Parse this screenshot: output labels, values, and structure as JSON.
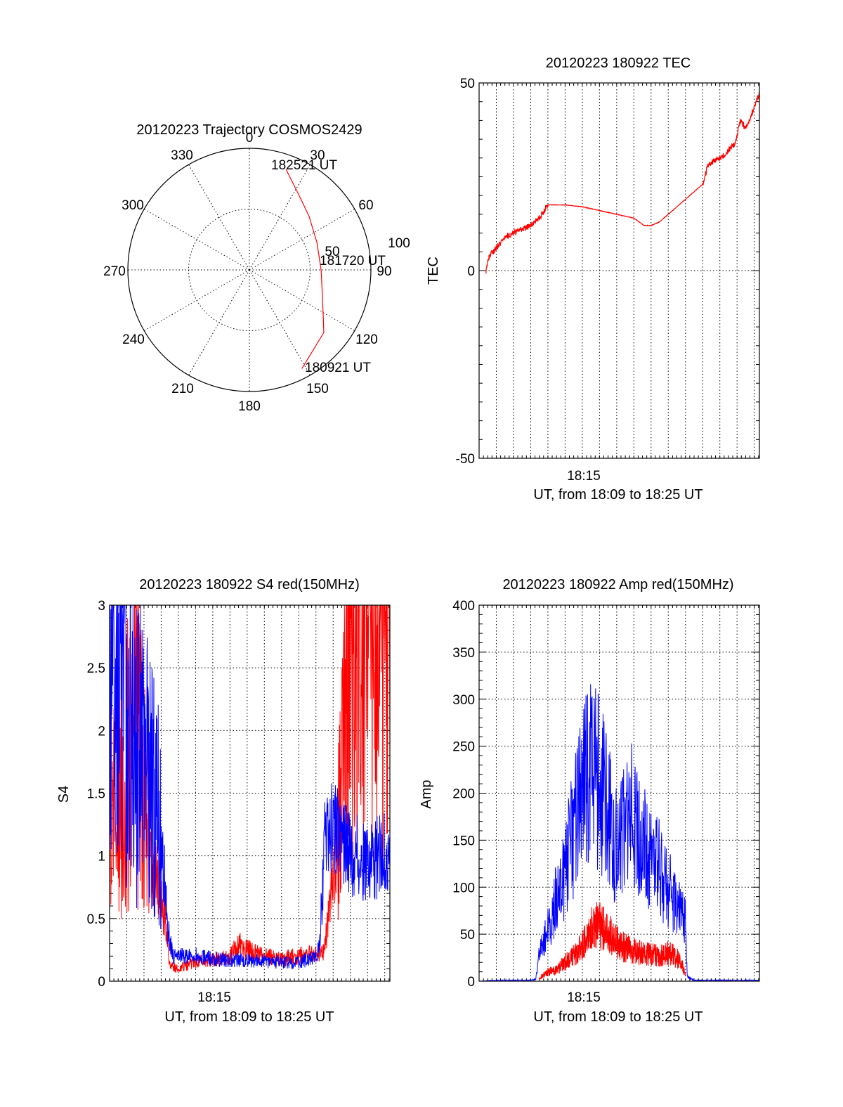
{
  "chart_data": [
    {
      "id": "trajectory",
      "type": "polar",
      "title": "20120223 Trajectory COSMOS2429",
      "azimuth_labels": [
        "0",
        "30",
        "60",
        "90",
        "120",
        "150",
        "180",
        "210",
        "240",
        "270",
        "300",
        "330"
      ],
      "ring_labels": [
        "50",
        "100"
      ],
      "rmax": 100,
      "grid_rings": [
        50
      ],
      "grid_spokes_deg": [
        0,
        30,
        60,
        90,
        120,
        150,
        180,
        210,
        240,
        270,
        300,
        330
      ],
      "track": {
        "color": "#ff0000",
        "points": [
          {
            "az": 20,
            "r": 88
          },
          {
            "az": 32,
            "r": 75
          },
          {
            "az": 48,
            "r": 66
          },
          {
            "az": 68,
            "r": 60
          },
          {
            "az": 90,
            "r": 59
          },
          {
            "az": 110,
            "r": 64
          },
          {
            "az": 130,
            "r": 80
          },
          {
            "az": 152,
            "r": 92
          }
        ],
        "time_labels": [
          {
            "text": "182521 UT",
            "az": 20,
            "r": 88
          },
          {
            "text": "181720 UT",
            "az": 90,
            "r": 59
          },
          {
            "text": "180921 UT",
            "az": 152,
            "r": 92
          }
        ]
      }
    },
    {
      "id": "tec",
      "type": "line",
      "title": "20120223 180922 TEC",
      "xlabel": "UT, from 18:09 to 18:25 UT",
      "ylabel": "TEC",
      "xlim": [
        0,
        16.3
      ],
      "ylim": [
        -50,
        50
      ],
      "xtick_label": {
        "value": 6,
        "text": "18:15"
      },
      "xgrid_step": 1,
      "ytick_labels": [
        {
          "value": 50,
          "text": "50"
        },
        {
          "value": 0,
          "text": "0"
        },
        {
          "value": -50,
          "text": "-50"
        }
      ],
      "ygrid": [
        0
      ],
      "yminor_step": 5,
      "series": [
        {
          "color": "#ff0000",
          "x": [
            0.4,
            0.6,
            1.0,
            1.5,
            2.0,
            2.5,
            3.0,
            3.5,
            4.0,
            5.0,
            6.0,
            7.0,
            8.0,
            9.0,
            9.6,
            10.0,
            10.5,
            11.0,
            11.5,
            12.0,
            12.5,
            13.0,
            13.3,
            13.6,
            14.0,
            14.5,
            14.9,
            15.2,
            15.5,
            15.8,
            16.1,
            16.3
          ],
          "y": [
            0,
            4,
            6,
            9,
            10,
            11,
            12,
            14,
            17.5,
            17.5,
            17,
            16,
            15,
            14,
            12,
            12,
            13,
            15,
            17,
            19,
            21,
            23,
            28,
            29,
            30,
            32,
            34,
            40,
            38,
            41,
            45,
            47
          ]
        }
      ]
    },
    {
      "id": "s4",
      "type": "line",
      "title": "20120223 180922 S4 red(150MHz)",
      "xlabel": "UT, from 18:09 to 18:25 UT",
      "ylabel": "S4",
      "xlim": [
        0,
        16.3
      ],
      "ylim": [
        0,
        3
      ],
      "xtick_label": {
        "value": 6,
        "text": "18:15"
      },
      "xgrid_step": 1,
      "ytick_labels": [
        {
          "value": 0,
          "text": "0"
        },
        {
          "value": 0.5,
          "text": "0.5"
        },
        {
          "value": 1,
          "text": "1"
        },
        {
          "value": 1.5,
          "text": "1.5"
        },
        {
          "value": 2,
          "text": "2"
        },
        {
          "value": 2.5,
          "text": "2.5"
        },
        {
          "value": 3,
          "text": "3"
        }
      ],
      "yminor_step": 0.1,
      "series": [
        {
          "color": "#ff0000",
          "x": [
            0,
            0.5,
            1.0,
            1.5,
            2.0,
            2.5,
            3.0,
            3.2,
            3.5,
            4.0,
            5.0,
            6.0,
            7.0,
            7.5,
            8.0,
            9.0,
            10.0,
            11.0,
            12.0,
            12.5,
            13.0,
            13.5,
            14.0,
            14.5,
            15.0,
            15.5,
            16.0,
            16.3
          ],
          "y": [
            1.2,
            1.5,
            1.8,
            2.0,
            1.6,
            0.9,
            0.7,
            0.5,
            0.12,
            0.1,
            0.15,
            0.18,
            0.2,
            0.3,
            0.25,
            0.2,
            0.18,
            0.2,
            0.22,
            0.25,
            0.8,
            1.5,
            3.0,
            3.0,
            3.0,
            3.0,
            3.0,
            3.0
          ]
        },
        {
          "color": "#0000ff",
          "x": [
            0,
            0.5,
            1.0,
            1.5,
            2.0,
            2.5,
            3.0,
            3.4,
            3.7,
            4.0,
            5.0,
            6.0,
            7.0,
            8.0,
            9.0,
            10.0,
            11.0,
            12.0,
            12.2,
            12.5,
            13.0,
            13.5,
            14.0,
            14.5,
            15.0,
            15.5,
            16.0,
            16.3
          ],
          "y": [
            2.4,
            2.7,
            2.3,
            1.9,
            1.7,
            1.5,
            1.2,
            0.4,
            0.2,
            0.2,
            0.2,
            0.18,
            0.17,
            0.17,
            0.16,
            0.15,
            0.15,
            0.2,
            0.25,
            1.1,
            1.2,
            1.1,
            1.0,
            1.0,
            0.95,
            1.0,
            1.0,
            0.95
          ]
        }
      ]
    },
    {
      "id": "amp",
      "type": "line",
      "title": "20120223 180922 Amp red(150MHz)",
      "xlabel": "UT, from 18:09 to 18:25 UT",
      "ylabel": "Amp",
      "xlim": [
        0,
        16.3
      ],
      "ylim": [
        0,
        400
      ],
      "xtick_label": {
        "value": 6,
        "text": "18:15"
      },
      "xgrid_step": 1,
      "ytick_labels": [
        {
          "value": 0,
          "text": "0"
        },
        {
          "value": 50,
          "text": "50"
        },
        {
          "value": 100,
          "text": "100"
        },
        {
          "value": 150,
          "text": "150"
        },
        {
          "value": 200,
          "text": "200"
        },
        {
          "value": 250,
          "text": "250"
        },
        {
          "value": 300,
          "text": "300"
        },
        {
          "value": 350,
          "text": "350"
        },
        {
          "value": 400,
          "text": "400"
        }
      ],
      "yminor_step": 10,
      "series": [
        {
          "color": "#0000ff",
          "x": [
            0,
            1,
            2,
            3,
            3.3,
            3.5,
            4.0,
            4.5,
            5.0,
            5.5,
            6.0,
            6.5,
            7.0,
            7.5,
            8.0,
            8.5,
            9.0,
            9.5,
            10.0,
            10.5,
            11.0,
            11.5,
            12.0,
            12.1,
            12.5,
            13.0,
            14.0,
            15.0,
            16.0,
            16.3
          ],
          "y": [
            0,
            1,
            1,
            1,
            2,
            30,
            55,
            90,
            120,
            160,
            200,
            230,
            210,
            180,
            140,
            160,
            180,
            150,
            130,
            120,
            100,
            80,
            60,
            5,
            1,
            1,
            1,
            1,
            1,
            1
          ]
        },
        {
          "color": "#ff0000",
          "x": [
            3.5,
            4.0,
            4.5,
            5.0,
            5.5,
            6.0,
            6.5,
            7.0,
            7.5,
            8.0,
            8.5,
            9.0,
            9.5,
            10.0,
            10.5,
            11.0,
            11.5,
            12.0
          ],
          "y": [
            3,
            10,
            12,
            20,
            28,
            38,
            55,
            60,
            52,
            42,
            35,
            32,
            30,
            28,
            27,
            30,
            25,
            10
          ]
        }
      ]
    }
  ]
}
